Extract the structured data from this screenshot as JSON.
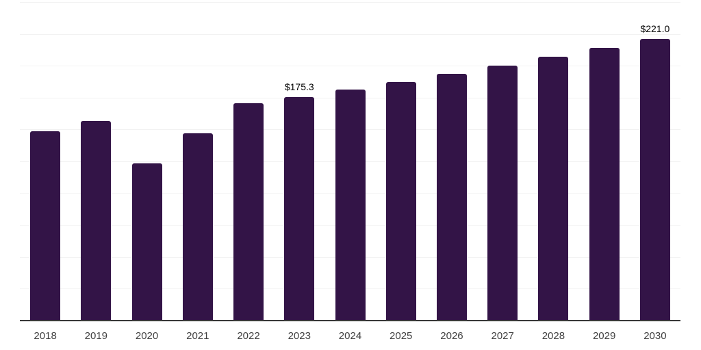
{
  "chart_data": {
    "type": "bar",
    "title": "",
    "xlabel": "",
    "ylabel": "",
    "categories": [
      "2018",
      "2019",
      "2020",
      "2021",
      "2022",
      "2023",
      "2024",
      "2025",
      "2026",
      "2027",
      "2028",
      "2029",
      "2030"
    ],
    "values": [
      148.7,
      156.7,
      123.5,
      147.1,
      170.4,
      175.3,
      181.2,
      187.3,
      193.6,
      200.2,
      206.9,
      213.9,
      221.0
    ],
    "value_labels": [
      "",
      "",
      "",
      "",
      "",
      "$175.3",
      "",
      "",
      "",
      "",
      "",
      "",
      "$221.0"
    ],
    "ylim": [
      0,
      250
    ],
    "grid_step": 25,
    "grid": true,
    "legend": false,
    "colors": {
      "bar": "#331447",
      "gridline": "#f2f2f2",
      "axis_line": "#383838",
      "tick_label": "#404040",
      "value_label": "#000000"
    }
  }
}
